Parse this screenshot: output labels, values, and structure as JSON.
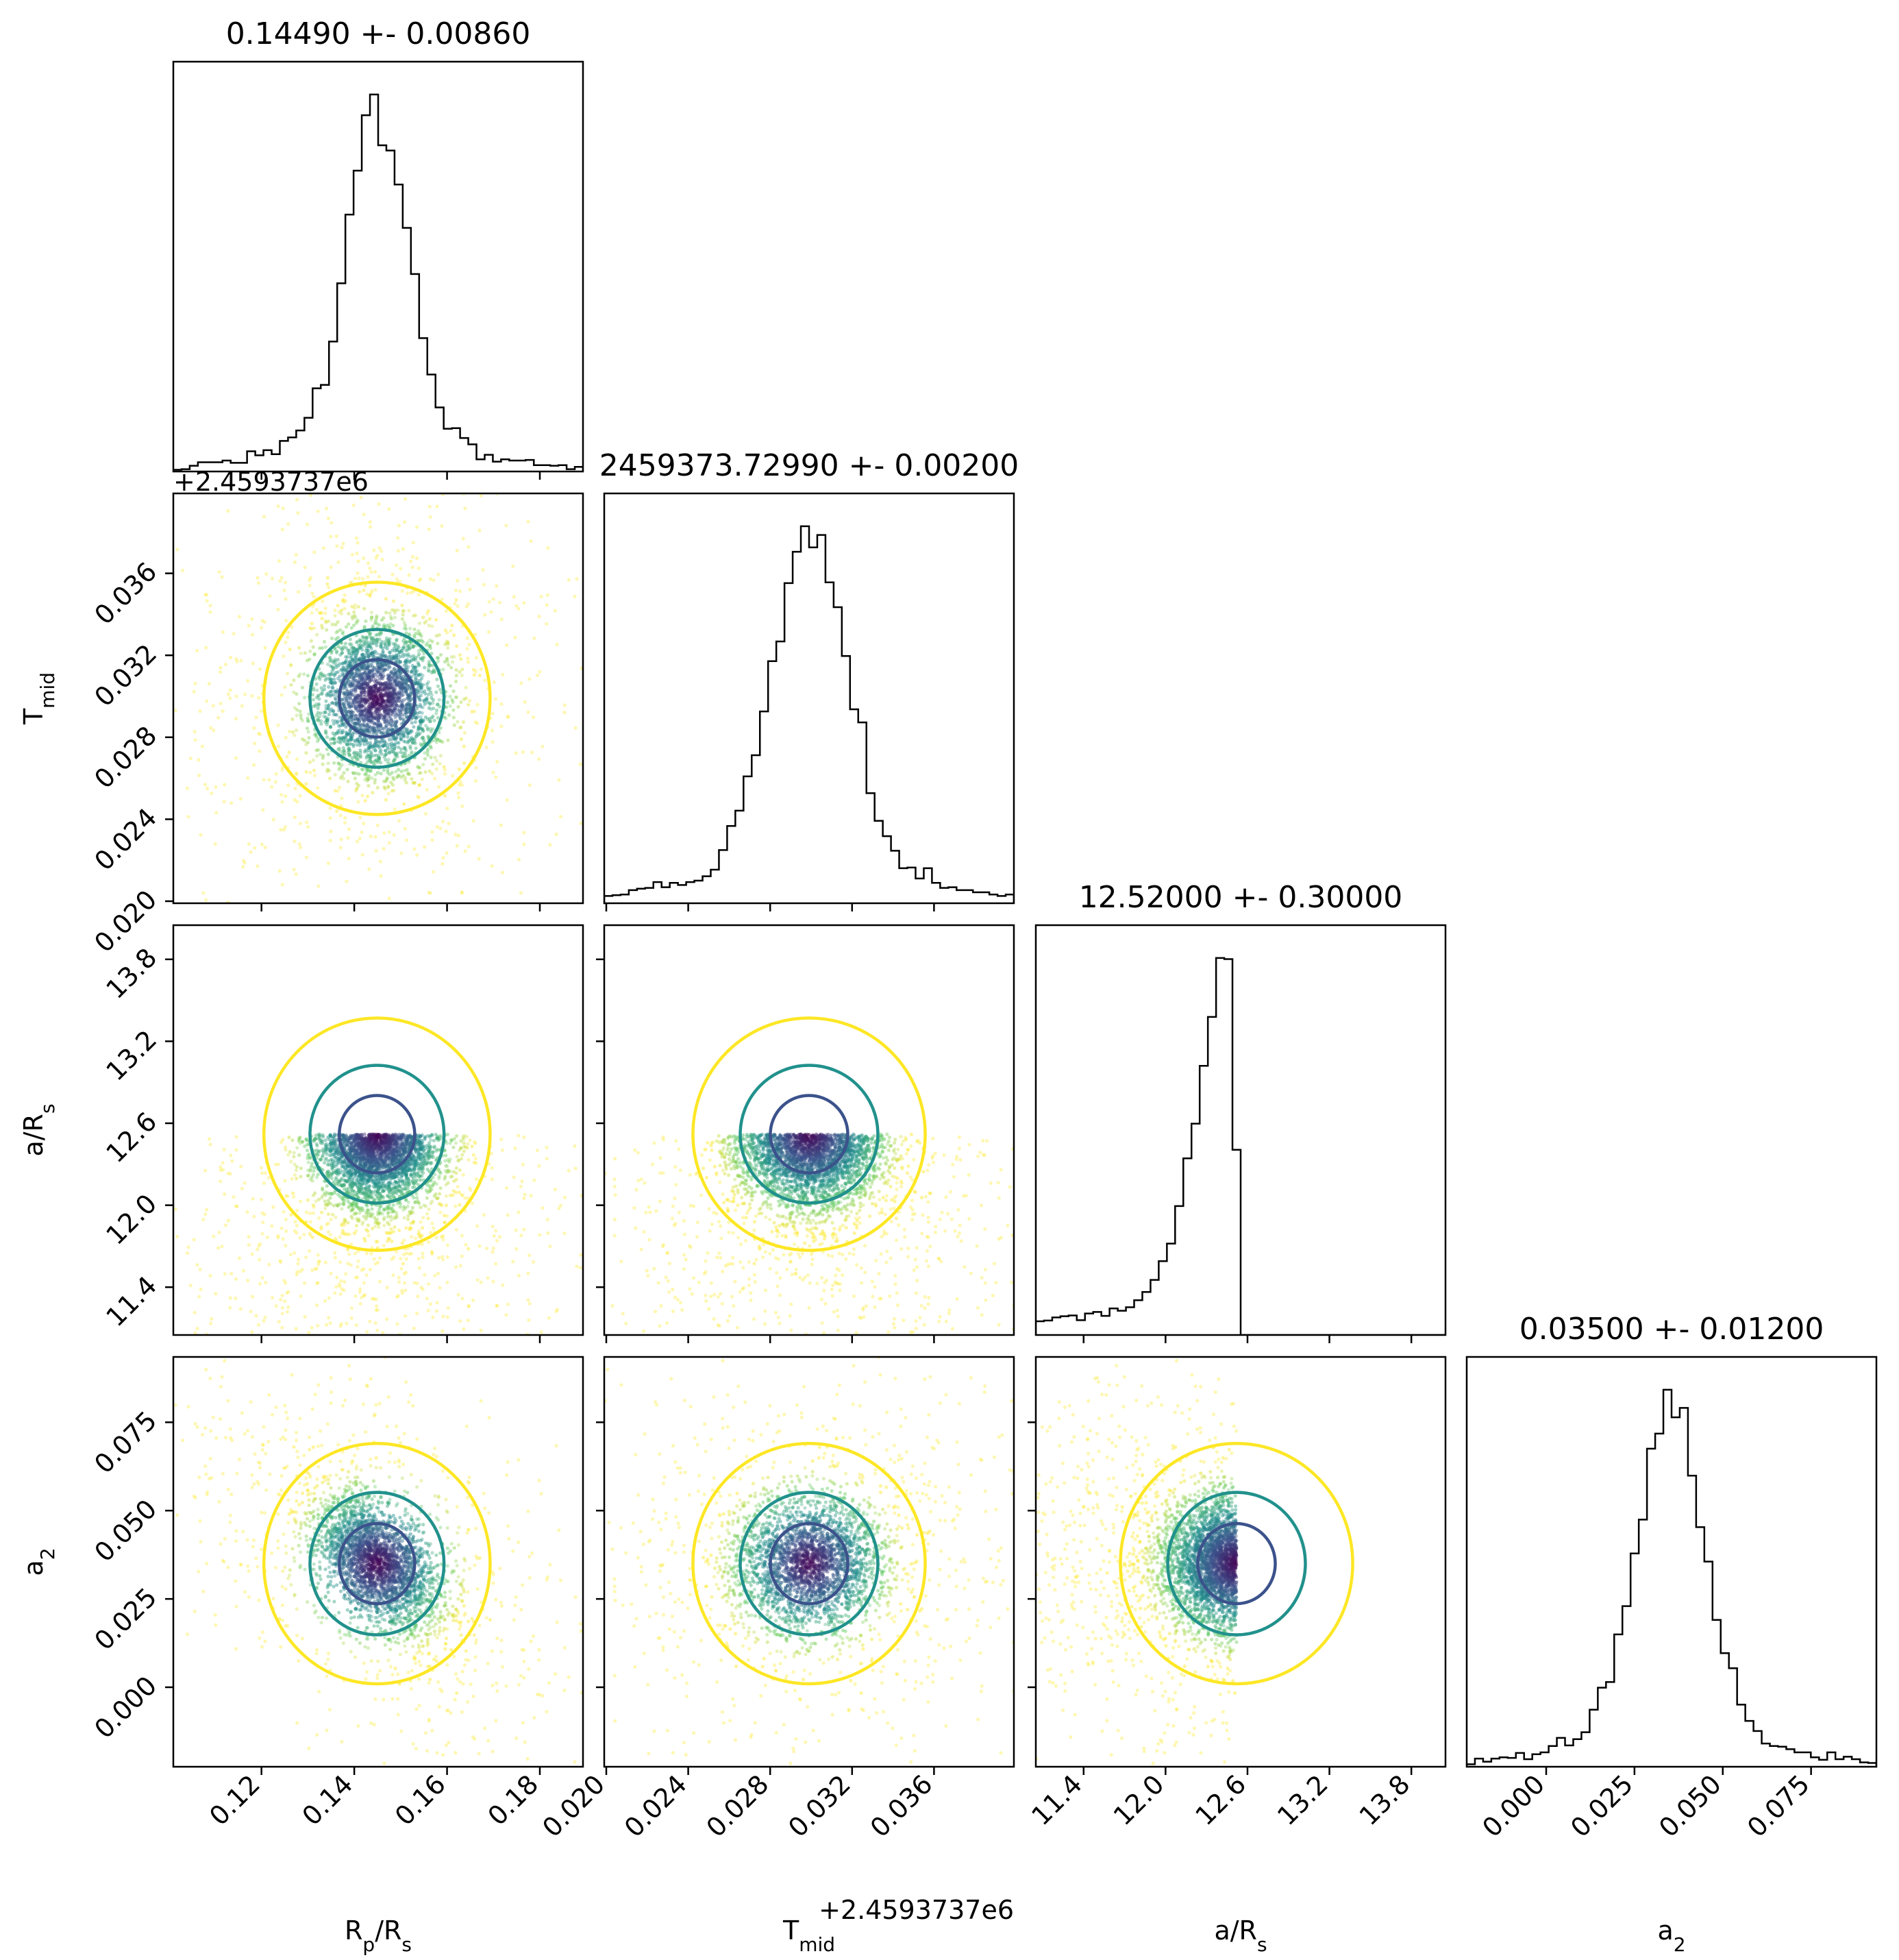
{
  "chart_data": {
    "type": "corner",
    "parameters": [
      {
        "key": "rp",
        "label": "R",
        "label_sub": "p",
        "label_tail": "/R",
        "label_sub2": "s",
        "title": "0.14490 +- 0.00860",
        "mean": 0.1449,
        "std": 0.0086,
        "range": [
          0.101,
          0.1893
        ],
        "ticks": [
          "0.12",
          "0.14",
          "0.16",
          "0.18"
        ],
        "tick_values": [
          0.12,
          0.14,
          0.16,
          0.18
        ],
        "offset_text": ""
      },
      {
        "key": "tmid",
        "label": "T",
        "label_sub": "mid",
        "label_tail": "",
        "label_sub2": "",
        "title": "2459373.72990 +- 0.00200",
        "mean": 0.0299,
        "std": 0.002,
        "range": [
          0.0199,
          0.0399
        ],
        "ticks": [
          "0.020",
          "0.024",
          "0.028",
          "0.032",
          "0.036"
        ],
        "tick_values": [
          0.02,
          0.024,
          0.028,
          0.032,
          0.036
        ],
        "offset_text": "+2.4593737e6"
      },
      {
        "key": "ars",
        "label": "a/R",
        "label_sub": "s",
        "label_tail": "",
        "label_sub2": "",
        "title": "12.52000 +- 0.30000",
        "mean": 12.52,
        "std": 0.3,
        "range": [
          11.05,
          14.05
        ],
        "ticks": [
          "11.4",
          "12.0",
          "12.6",
          "13.2",
          "13.8"
        ],
        "tick_values": [
          11.4,
          12.0,
          12.6,
          13.2,
          13.8
        ],
        "offset_text": ""
      },
      {
        "key": "a2",
        "label": "a",
        "label_sub": "2",
        "label_tail": "",
        "label_sub2": "",
        "title": "0.03500 +- 0.01200",
        "mean": 0.035,
        "std": 0.012,
        "range": [
          -0.0225,
          0.0935
        ],
        "ticks": [
          "0.000",
          "0.025",
          "0.050",
          "0.075"
        ],
        "tick_values": [
          0.0,
          0.025,
          0.05,
          0.075
        ],
        "offset_text": ""
      }
    ],
    "ars_upper_bound": 12.52,
    "histogram_color": "#000000",
    "contour_levels": [
      "inner",
      "middle",
      "outer"
    ],
    "contour_colors": [
      "#3b528b",
      "#21918c",
      "#fde725"
    ],
    "sample_colormap": "viridis"
  }
}
